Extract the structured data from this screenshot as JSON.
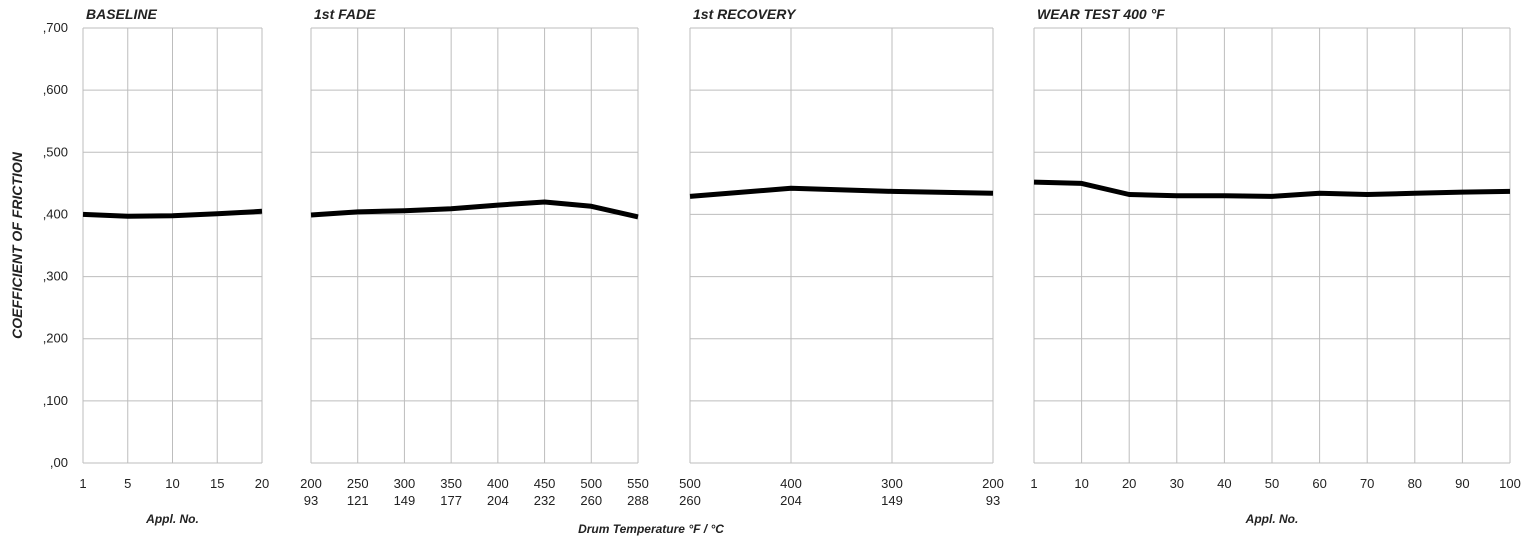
{
  "chart_data": [
    {
      "type": "line",
      "title": "BASELINE",
      "y_label": "COEFFICIENT OF FRICTION",
      "y_ticks": [
        ",00",
        ",100",
        ",200",
        ",300",
        ",400",
        ",500",
        ",600",
        ",700"
      ],
      "ylim": [
        0,
        0.7
      ],
      "x_ticks": [
        "1",
        "5",
        "10",
        "15",
        "20"
      ],
      "x_label": "Appl. No.",
      "grid": true,
      "series": [
        {
          "x_index": [
            0,
            1,
            2,
            3,
            4
          ],
          "values": [
            0.4,
            0.397,
            0.398,
            0.401,
            0.405
          ]
        }
      ],
      "line_color": "#000000"
    },
    {
      "type": "line",
      "title": "1st FADE",
      "ylim": [
        0,
        0.7
      ],
      "x_ticks": [
        "200",
        "250",
        "300",
        "350",
        "400",
        "450",
        "500",
        "550"
      ],
      "x_ticks_2": [
        "93",
        "121",
        "149",
        "177",
        "204",
        "232",
        "260",
        "288"
      ],
      "grid": true,
      "series": [
        {
          "x_index": [
            0,
            1,
            2,
            3,
            4,
            5,
            6,
            7
          ],
          "values": [
            0.399,
            0.404,
            0.406,
            0.409,
            0.415,
            0.42,
            0.413,
            0.396
          ]
        }
      ],
      "line_color": "#000000"
    },
    {
      "type": "line",
      "title": "1st  RECOVERY",
      "ylim": [
        0,
        0.7
      ],
      "x_ticks": [
        "500",
        "400",
        "300",
        "200"
      ],
      "x_ticks_2": [
        "260",
        "204",
        "149",
        "93"
      ],
      "grid": true,
      "series": [
        {
          "x_index": [
            0,
            1,
            2,
            3
          ],
          "values": [
            0.429,
            0.442,
            0.437,
            0.434
          ]
        }
      ],
      "line_color": "#000000"
    },
    {
      "type": "line",
      "title": "WEAR TEST 400 °F",
      "ylim": [
        0,
        0.7
      ],
      "x_ticks": [
        "1",
        "10",
        "20",
        "30",
        "40",
        "50",
        "60",
        "70",
        "80",
        "90",
        "100"
      ],
      "x_label": "Appl. No.",
      "grid": true,
      "series": [
        {
          "x_index": [
            0,
            1,
            2,
            3,
            4,
            5,
            6,
            7,
            8,
            9,
            10
          ],
          "values": [
            0.452,
            0.45,
            0.432,
            0.43,
            0.43,
            0.429,
            0.434,
            0.432,
            0.434,
            0.436,
            0.437
          ]
        }
      ],
      "line_color": "#000000"
    }
  ],
  "shared_x_label": "Drum Temperature °F / °C"
}
